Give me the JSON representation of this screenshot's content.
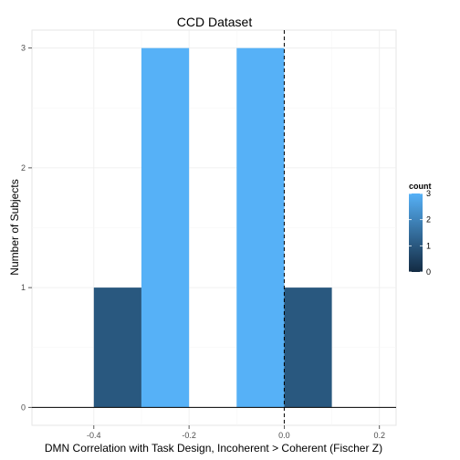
{
  "chart_data": {
    "type": "bar",
    "title": "CCD Dataset",
    "xlabel": "DMN Correlation with Task Design, Incoherent > Coherent (Fischer Z)",
    "ylabel": "Number of Subjects",
    "xlim": [
      -0.53,
      0.235
    ],
    "ylim": [
      -0.15,
      3.15
    ],
    "x_ticks": [
      -0.4,
      -0.2,
      0.0,
      0.2
    ],
    "x_tick_labels": [
      "-0.4",
      "-0.2",
      "0.0",
      "0.2"
    ],
    "y_ticks": [
      0,
      1,
      2,
      3
    ],
    "y_tick_labels": [
      "0",
      "1",
      "2",
      "3"
    ],
    "bin_width": 0.1,
    "bins": [
      {
        "xmin": -0.4,
        "xmax": -0.3,
        "count": 1
      },
      {
        "xmin": -0.3,
        "xmax": -0.2,
        "count": 3
      },
      {
        "xmin": -0.2,
        "xmax": -0.1,
        "count": 0
      },
      {
        "xmin": -0.1,
        "xmax": 0.0,
        "count": 3
      },
      {
        "xmin": 0.0,
        "xmax": 0.1,
        "count": 1
      }
    ],
    "reference_line": {
      "x": 0.0,
      "style": "dashed"
    },
    "fill_scale": {
      "title": "count",
      "min": 0,
      "max": 3,
      "low_color": "#132B43",
      "high_color": "#56B1F7",
      "breaks": [
        0,
        1,
        2,
        3
      ],
      "break_labels": [
        "0",
        "1",
        "2",
        "3"
      ]
    },
    "grid": true,
    "legend_position": "right"
  }
}
